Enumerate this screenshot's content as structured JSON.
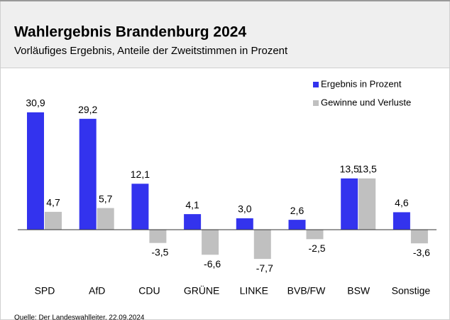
{
  "chart_data": {
    "type": "bar",
    "title": "Wahlergebnis Brandenburg 2024",
    "subtitle": "Vorläufiges Ergebnis, Anteile der Zweitstimmen in Prozent",
    "source": "Quelle: Der Landeswahlleiter, 22.09.2024",
    "categories": [
      "SPD",
      "AfD",
      "CDU",
      "GRÜNE",
      "LINKE",
      "BVB/FW",
      "BSW",
      "Sonstige"
    ],
    "series": [
      {
        "name": "Ergebnis in Prozent",
        "color": "#3333ee",
        "values": [
          30.9,
          29.2,
          12.1,
          4.1,
          3.0,
          2.6,
          13.5,
          4.6
        ],
        "value_labels": [
          "30,9",
          "29,2",
          "12,1",
          "4,1",
          "3,0",
          "2,6",
          "13,5",
          "4,6"
        ]
      },
      {
        "name": "Gewinne und Verluste",
        "color": "#c0c0c0",
        "values": [
          4.7,
          5.7,
          -3.5,
          -6.6,
          -7.7,
          -2.5,
          13.5,
          -3.6
        ],
        "value_labels": [
          "4,7",
          "5,7",
          "-3,5",
          "-6,6",
          "-7,7",
          "-2,5",
          "13,5",
          "-3,6"
        ]
      }
    ],
    "legend": "top-right"
  }
}
